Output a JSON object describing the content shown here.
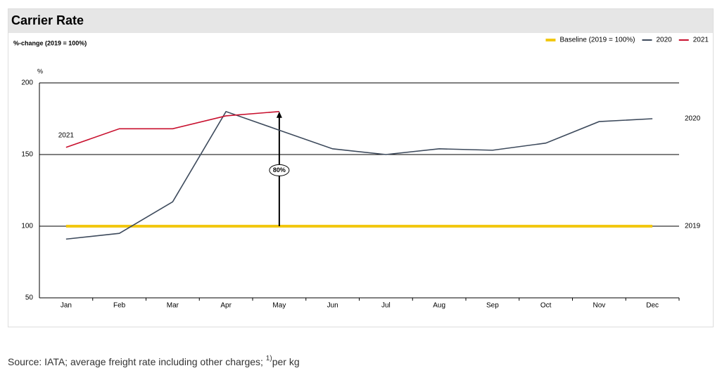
{
  "chart_data": {
    "type": "line",
    "title": "Carrier Rate",
    "subtitle": "%-change (2019 = 100%)",
    "y_unit": "%",
    "categories": [
      "Jan",
      "Feb",
      "Mar",
      "Apr",
      "May",
      "Jun",
      "Jul",
      "Aug",
      "Sep",
      "Oct",
      "Nov",
      "Dec"
    ],
    "series": [
      {
        "name": "Baseline (2019 = 100%)",
        "color": "#f2c811",
        "values": [
          100,
          100,
          100,
          100,
          100,
          100,
          100,
          100,
          100,
          100,
          100,
          100
        ]
      },
      {
        "name": "2020",
        "color": "#3d4a5c",
        "values": [
          91,
          95,
          117,
          180,
          167,
          154,
          150,
          154,
          153,
          158,
          173,
          175
        ]
      },
      {
        "name": "2021",
        "color": "#c8102e",
        "values": [
          155,
          168,
          168,
          177,
          180,
          null,
          null,
          null,
          null,
          null,
          null,
          null
        ]
      }
    ],
    "ylim": [
      50,
      200
    ],
    "yticks": [
      50,
      100,
      150,
      200
    ],
    "grid": true,
    "legend": "top-right",
    "annotations": {
      "label_2021": "2021",
      "label_2020": "2020",
      "label_2019": "2019",
      "arrow": "80%"
    },
    "source": "Source: IATA; average freight rate including other charges; ",
    "source_sup": "1)",
    "source_tail": "per kg"
  }
}
